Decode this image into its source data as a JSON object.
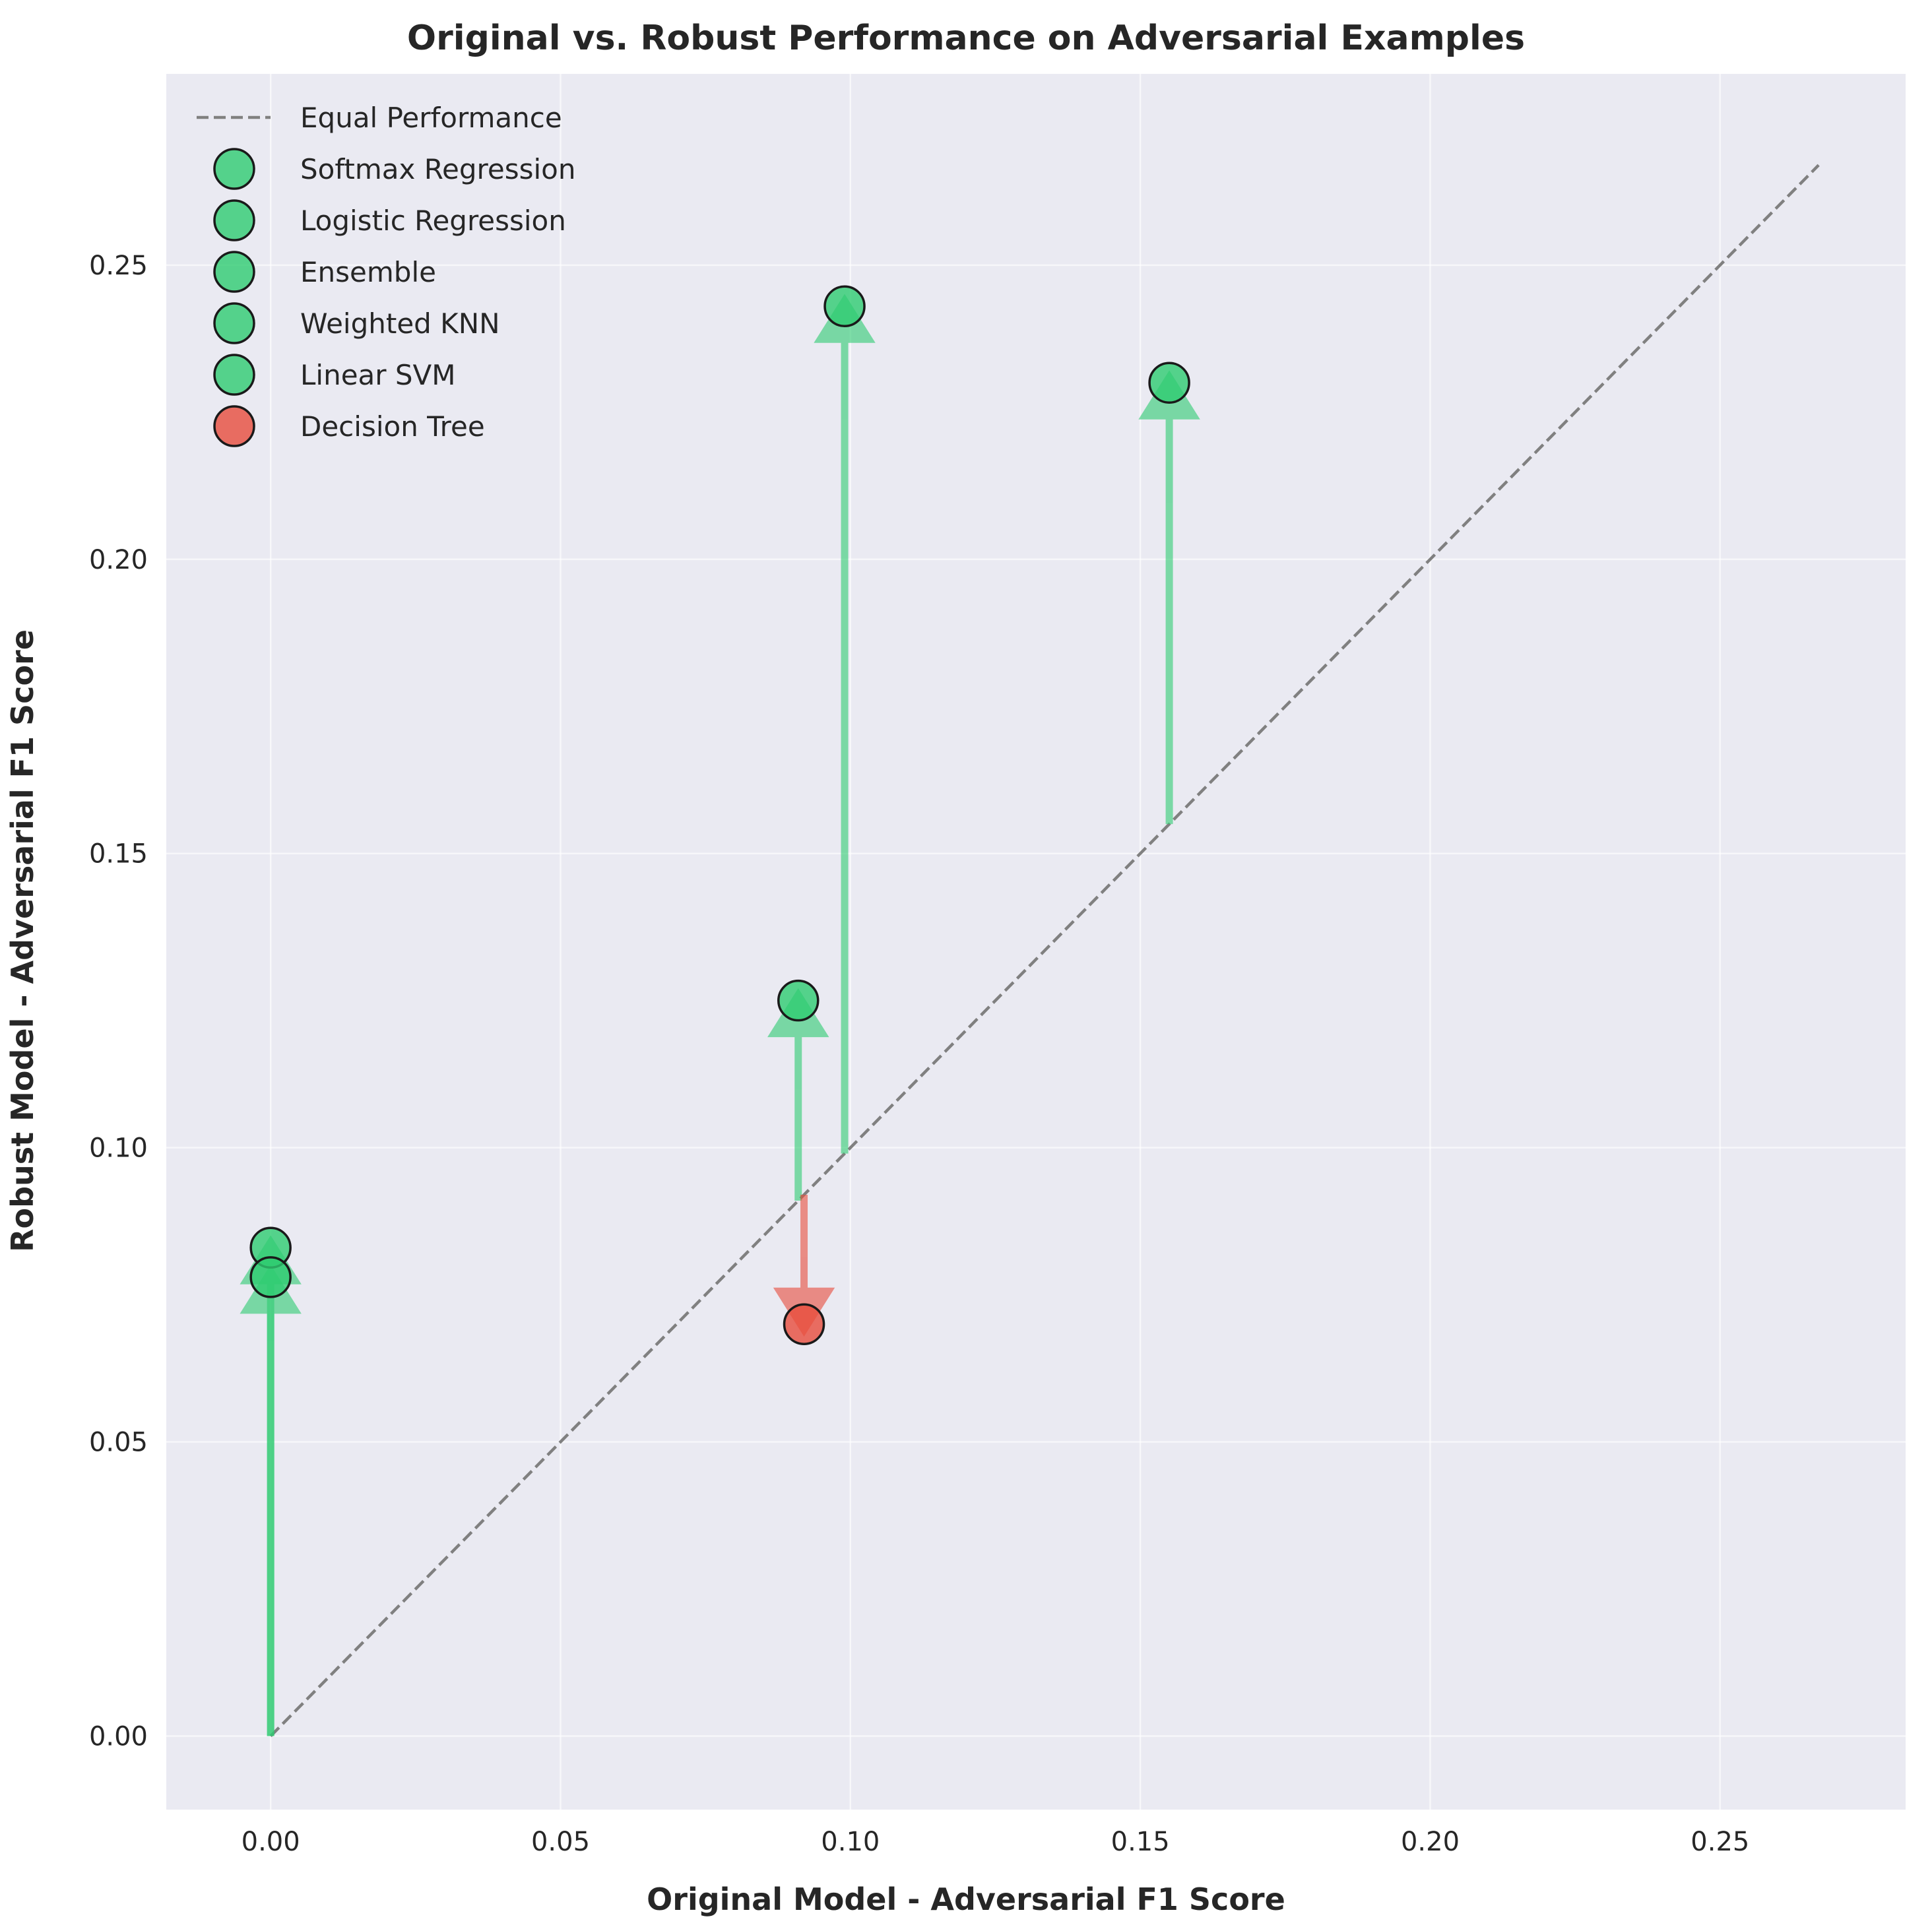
{
  "chart_data": {
    "type": "scatter",
    "title": "Original vs. Robust Performance on Adversarial Examples",
    "xlabel": "Original Model - Adversarial F1 Score",
    "ylabel": "Robust Model - Adversarial F1 Score",
    "xlim": [
      -0.018,
      0.282
    ],
    "ylim": [
      -0.0125,
      0.2825
    ],
    "xticks": [
      0.0,
      0.05,
      0.1,
      0.15,
      0.2,
      0.25
    ],
    "yticks": [
      0.0,
      0.05,
      0.1,
      0.15,
      0.2,
      0.25
    ],
    "xtick_labels": [
      "0.00",
      "0.05",
      "0.10",
      "0.15",
      "0.20",
      "0.25"
    ],
    "ytick_labels": [
      "0.00",
      "0.05",
      "0.10",
      "0.15",
      "0.20",
      "0.25"
    ],
    "grid": true,
    "legend_position": "top-left",
    "reference_line": {
      "name": "Equal Performance",
      "from": [
        0.0,
        0.0
      ],
      "to": [
        0.267,
        0.267
      ],
      "style": "dashed",
      "color": "#808080"
    },
    "series": [
      {
        "name": "Softmax Regression",
        "original": 0.0,
        "robust": 0.083,
        "color": "#2ecc71"
      },
      {
        "name": "Logistic Regression",
        "original": 0.0,
        "robust": 0.078,
        "color": "#2ecc71"
      },
      {
        "name": "Ensemble",
        "original": 0.099,
        "robust": 0.243,
        "color": "#2ecc71"
      },
      {
        "name": "Weighted KNN",
        "original": 0.155,
        "robust": 0.23,
        "color": "#2ecc71"
      },
      {
        "name": "Linear SVM",
        "original": 0.091,
        "robust": 0.125,
        "color": "#2ecc71"
      },
      {
        "name": "Decision Tree",
        "original": 0.092,
        "robust": 0.07,
        "color": "#e74c3c"
      }
    ],
    "colors": {
      "background": "#eaeaf2",
      "grid": "#ffffff",
      "improved": "#2ecc71",
      "degraded": "#e74c3c",
      "marker_edge": "#1a1a1a"
    }
  }
}
